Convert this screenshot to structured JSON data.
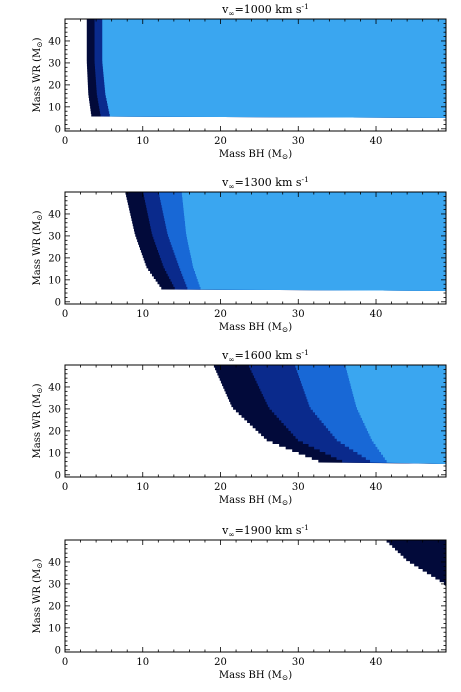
{
  "figure": {
    "x_axis_label": "Mass BH (M",
    "y_axis_label": "Mass WR (M",
    "sun_symbol": "⊙",
    "title_prefix": "v",
    "title_subscript": "∞",
    "title_unit": "km s",
    "title_unit_exp": "-1"
  },
  "colors": {
    "band_0": "#020a3a",
    "band_1": "#0a2a8c",
    "band_2": "#1868d6",
    "band_3": "#3aa6f0"
  },
  "chart_data": [
    {
      "type": "area",
      "title": "v∞=1000 km s-1",
      "title_value": "=1000",
      "xlim": [
        0,
        49
      ],
      "ylim": [
        -1,
        50
      ],
      "xticks": [
        "0",
        "10",
        "20",
        "30",
        "40"
      ],
      "yticks": [
        "0",
        "10",
        "20",
        "30",
        "40"
      ],
      "y_min_region": 5,
      "bands": [
        {
          "band": 0,
          "boundary": [
            [
              2.8,
              50
            ],
            [
              2.8,
              30
            ],
            [
              3.0,
              15
            ],
            [
              3.4,
              5
            ]
          ]
        },
        {
          "band": 1,
          "boundary": [
            [
              3.8,
              50
            ],
            [
              3.8,
              30
            ],
            [
              4.1,
              15
            ],
            [
              4.6,
              5
            ]
          ]
        },
        {
          "band": 2,
          "boundary": [
            [
              4.8,
              50
            ],
            [
              4.8,
              30
            ],
            [
              5.2,
              15
            ],
            [
              5.8,
              5
            ]
          ]
        },
        {
          "band": 3,
          "boundary": [
            [
              49,
              50
            ],
            [
              49,
              5
            ]
          ]
        }
      ]
    },
    {
      "type": "area",
      "title": "v∞=1300 km s-1",
      "title_value": "=1300",
      "xlim": [
        0,
        49
      ],
      "ylim": [
        -1,
        50
      ],
      "xticks": [
        "0",
        "10",
        "20",
        "30",
        "40"
      ],
      "yticks": [
        "0",
        "10",
        "20",
        "30",
        "40"
      ],
      "y_min_region": 5,
      "bands": [
        {
          "band": 0,
          "boundary": [
            [
              7.7,
              50
            ],
            [
              9.0,
              30
            ],
            [
              10.5,
              15
            ],
            [
              12.5,
              5
            ]
          ]
        },
        {
          "band": 1,
          "boundary": [
            [
              10.0,
              50
            ],
            [
              11.2,
              30
            ],
            [
              12.7,
              15
            ],
            [
              14.2,
              5
            ]
          ]
        },
        {
          "band": 2,
          "boundary": [
            [
              12.0,
              50
            ],
            [
              13.2,
              30
            ],
            [
              14.7,
              15
            ],
            [
              15.8,
              5
            ]
          ]
        },
        {
          "band": 3,
          "boundary": [
            [
              15.0,
              50
            ],
            [
              15.6,
              30
            ],
            [
              16.5,
              15
            ],
            [
              17.5,
              5
            ]
          ]
        },
        {
          "band": 4,
          "boundary": [
            [
              49,
              50
            ],
            [
              49,
              5
            ]
          ]
        }
      ]
    },
    {
      "type": "area",
      "title": "v∞=1600 km s-1",
      "title_value": "=1600",
      "xlim": [
        0,
        49
      ],
      "ylim": [
        -1,
        50
      ],
      "xticks": [
        "0",
        "10",
        "20",
        "30",
        "40"
      ],
      "yticks": [
        "0",
        "10",
        "20",
        "30",
        "40"
      ],
      "y_min_region": 5,
      "bands": [
        {
          "band": 0,
          "boundary": [
            [
              19.0,
              50
            ],
            [
              21.5,
              30
            ],
            [
              26.0,
              15
            ],
            [
              33.0,
              5
            ]
          ]
        },
        {
          "band": 1,
          "boundary": [
            [
              23.5,
              50
            ],
            [
              26.2,
              30
            ],
            [
              30.0,
              15
            ],
            [
              36.0,
              5
            ]
          ]
        },
        {
          "band": 2,
          "boundary": [
            [
              29.5,
              50
            ],
            [
              31.5,
              30
            ],
            [
              35.0,
              15
            ],
            [
              39.5,
              5
            ]
          ]
        },
        {
          "band": 3,
          "boundary": [
            [
              36.0,
              50
            ],
            [
              37.5,
              30
            ],
            [
              39.5,
              15
            ],
            [
              41.5,
              5
            ]
          ]
        },
        {
          "band": 4,
          "boundary": [
            [
              49,
              50
            ],
            [
              49,
              5
            ]
          ]
        }
      ]
    },
    {
      "type": "area",
      "title": "v∞=1900 km s-1",
      "title_value": "=1900",
      "xlim": [
        0,
        49
      ],
      "ylim": [
        -1,
        50
      ],
      "xticks": [
        "0",
        "10",
        "20",
        "30",
        "40"
      ],
      "yticks": [
        "0",
        "10",
        "20",
        "30",
        "40"
      ],
      "y_min_region": 29,
      "bands": [
        {
          "band": 0,
          "boundary": [
            [
              41.0,
              50
            ],
            [
              44.0,
              40
            ],
            [
              49,
              29
            ]
          ]
        }
      ]
    }
  ]
}
